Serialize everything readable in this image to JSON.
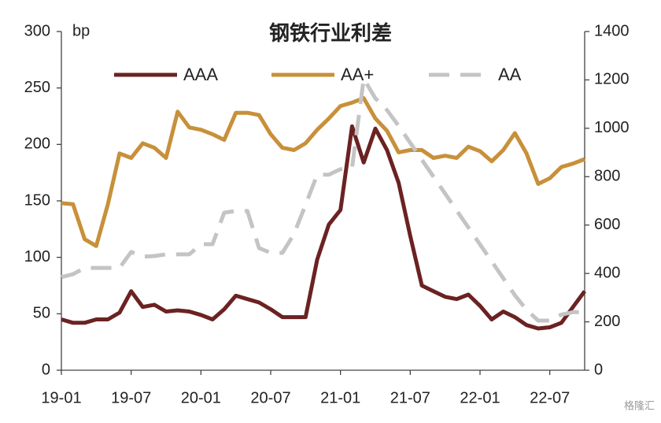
{
  "chart_data": {
    "type": "line",
    "title": "钢铁行业利差",
    "y_unit": "bp",
    "watermark": "格隆汇",
    "categories": [
      "19-01",
      null,
      null,
      null,
      null,
      null,
      "19-07",
      null,
      null,
      null,
      null,
      null,
      "20-01",
      null,
      null,
      null,
      null,
      null,
      "20-07",
      null,
      null,
      null,
      null,
      null,
      "21-01",
      null,
      null,
      null,
      null,
      null,
      "21-07",
      null,
      null,
      null,
      null,
      null,
      "22-01",
      null,
      null,
      null,
      null,
      null,
      "22-07",
      null,
      null,
      null
    ],
    "series": [
      {
        "name": "AAA",
        "color": "#6b2222",
        "dash": false,
        "axis": "y",
        "values": [
          45,
          42,
          42,
          45,
          45,
          51,
          70,
          56,
          58,
          52,
          53,
          52,
          49,
          45,
          54,
          66,
          63,
          60,
          54,
          47,
          47,
          47,
          98,
          129,
          142,
          216,
          184,
          214,
          195,
          166,
          119,
          75,
          70,
          65,
          63,
          67,
          57,
          45,
          52,
          47,
          40,
          37,
          38,
          42,
          56,
          70
        ]
      },
      {
        "name": "AA+",
        "color": "#c8903a",
        "dash": false,
        "axis": "y",
        "values": [
          148,
          147,
          116,
          110,
          147,
          192,
          188,
          201,
          197,
          188,
          229,
          215,
          213,
          209,
          204,
          228,
          228,
          226,
          209,
          197,
          195,
          201,
          213,
          223,
          234,
          237,
          241,
          223,
          212,
          193,
          195,
          195,
          188,
          190,
          188,
          198,
          194,
          185,
          195,
          210,
          192,
          165,
          170,
          180,
          183,
          187
        ]
      },
      {
        "name": "AA",
        "color": "#c4c4c4",
        "dash": true,
        "axis": "y2",
        "values": [
          385,
          397,
          423,
          423,
          423,
          423,
          489,
          469,
          472,
          479,
          479,
          479,
          521,
          521,
          651,
          658,
          658,
          505,
          485,
          485,
          563,
          684,
          808,
          808,
          831,
          837,
          1205,
          1124,
          1075,
          1010,
          940,
          870,
          800,
          730,
          660,
          590,
          520,
          450,
          380,
          310,
          250,
          205,
          205,
          230,
          240,
          240
        ]
      }
    ],
    "ylim": [
      0,
      300
    ],
    "yticks": [
      0,
      50,
      100,
      150,
      200,
      250,
      300
    ],
    "y2lim": [
      0,
      1400
    ],
    "y2ticks": [
      0,
      200,
      400,
      600,
      800,
      1000,
      1200,
      1400
    ],
    "grid": false,
    "legend": "top"
  }
}
